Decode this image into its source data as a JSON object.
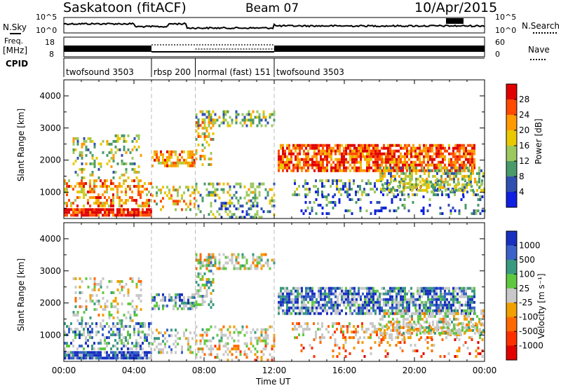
{
  "header": {
    "station": "Saskatoon (fitACF)",
    "beam": "Beam 07",
    "date": "10/Apr/2015"
  },
  "noise_panel": {
    "left_label": "N.Sky",
    "right_label": "N.Search",
    "left_ticks": [
      "10^5",
      "10^0"
    ],
    "right_ticks": [
      "10^5",
      "10^0"
    ]
  },
  "freq_panel": {
    "left_label_line1": "Freq.",
    "left_label_line2": "[MHz]",
    "right_label": "Nave",
    "left_ticks": [
      "18",
      "8"
    ],
    "right_ticks": [
      "60",
      "0"
    ]
  },
  "cpid_panel": {
    "label": "CPID",
    "modes": [
      {
        "name": "twofsound 3503",
        "start_ut": 0,
        "end_ut": 5.0
      },
      {
        "name": "rbsp 200",
        "start_ut": 5.0,
        "end_ut": 7.5
      },
      {
        "name": "normal (fast) 151",
        "start_ut": 7.5,
        "end_ut": 12.0
      },
      {
        "name": "twofsound 3503",
        "start_ut": 12.0,
        "end_ut": 24.0
      }
    ]
  },
  "chart_data": [
    {
      "type": "heatmap",
      "panel": "power",
      "ylabel": "Slant Range [km]",
      "xlabel": "",
      "ylim": [
        180,
        4500
      ],
      "xlim_hours": [
        0,
        24
      ],
      "yticks": [
        1000,
        2000,
        3000,
        4000
      ],
      "colorbar": {
        "label": "Power [dB]",
        "ticks": [
          "28",
          "24",
          "20",
          "16",
          "12",
          "8",
          "4"
        ],
        "colors": [
          "#e00000",
          "#ff4a00",
          "#ff9a00",
          "#e8c800",
          "#9cc860",
          "#4a9a6a",
          "#3050b0",
          "#1020e0"
        ]
      }
    },
    {
      "type": "heatmap",
      "panel": "velocity",
      "ylabel": "Slant Range [km]",
      "xlabel": "Time UT",
      "ylim": [
        180,
        4500
      ],
      "xlim_hours": [
        0,
        24
      ],
      "yticks": [
        1000,
        2000,
        3000,
        4000
      ],
      "xticks": [
        "00:00",
        "04:00",
        "08:00",
        "12:00",
        "16:00",
        "20:00",
        "00:00"
      ],
      "colorbar": {
        "label": "Velocity [m s⁻¹]",
        "ticks": [
          "1000",
          "500",
          "100",
          "25",
          "-25",
          "-100",
          "-500",
          "-1000"
        ],
        "colors": [
          "#1830c0",
          "#3a62c8",
          "#3a9a80",
          "#60c840",
          "#c8c8c8",
          "#f0a000",
          "#ff6a00",
          "#ff3000",
          "#e00000"
        ]
      }
    }
  ]
}
